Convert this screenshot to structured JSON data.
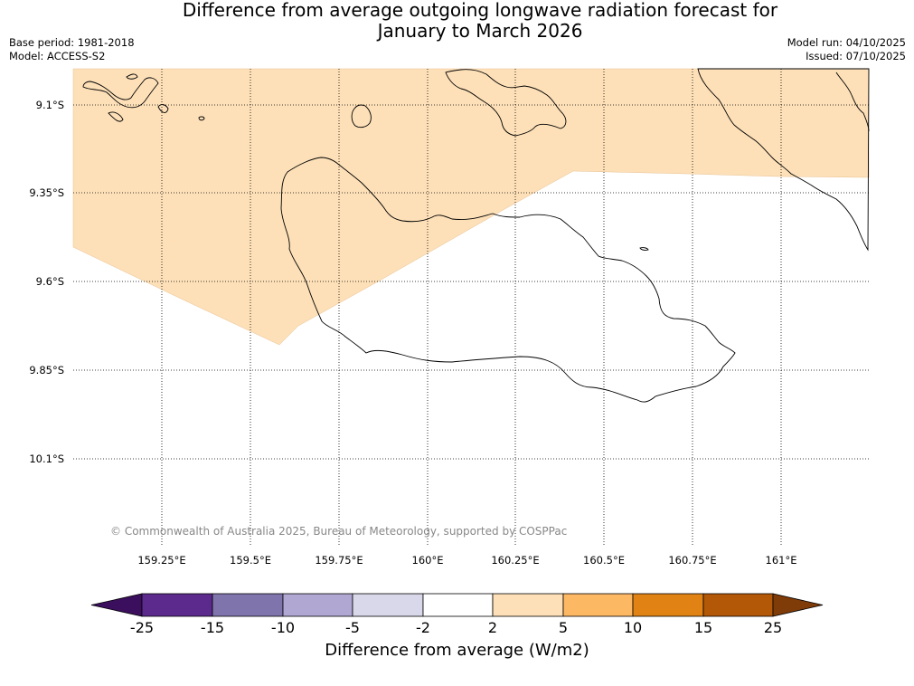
{
  "title": {
    "line1": "Difference from average outgoing longwave radiation forecast for",
    "line2": "January to March 2026"
  },
  "meta": {
    "base_period": "Base period: 1981-2018",
    "model": "Model: ACCESS-S2",
    "model_run": "Model run: 04/10/2025",
    "issued": "Issued: 07/10/2025"
  },
  "map": {
    "lat_labels": [
      "9.1°S",
      "9.35°S",
      "9.6°S",
      "9.85°S",
      "10.1°S"
    ],
    "lon_labels": [
      "159.25°E",
      "159.5°E",
      "159.75°E",
      "160°E",
      "160.25°E",
      "160.5°E",
      "160.75°E",
      "161°E"
    ],
    "copyright": "© Commonwealth of Australia 2025, Bureau of Meteorology, supported by COSPPac",
    "colors": {
      "anomaly_2_to_5": "#fde0b8",
      "coastline": "#000000",
      "grid": "#000000"
    }
  },
  "colorbar": {
    "label": "Difference from average (W/m2)",
    "ticks": [
      "-25",
      "-15",
      "-10",
      "-5",
      "-2",
      "2",
      "5",
      "10",
      "15",
      "25"
    ],
    "colors": [
      "#3b0f5e",
      "#5b2a8c",
      "#8074ac",
      "#b0a8d2",
      "#d8d8ea",
      "#ffffff",
      "#fde0b8",
      "#fdb864",
      "#e08214",
      "#b35806",
      "#7f3b08"
    ]
  }
}
